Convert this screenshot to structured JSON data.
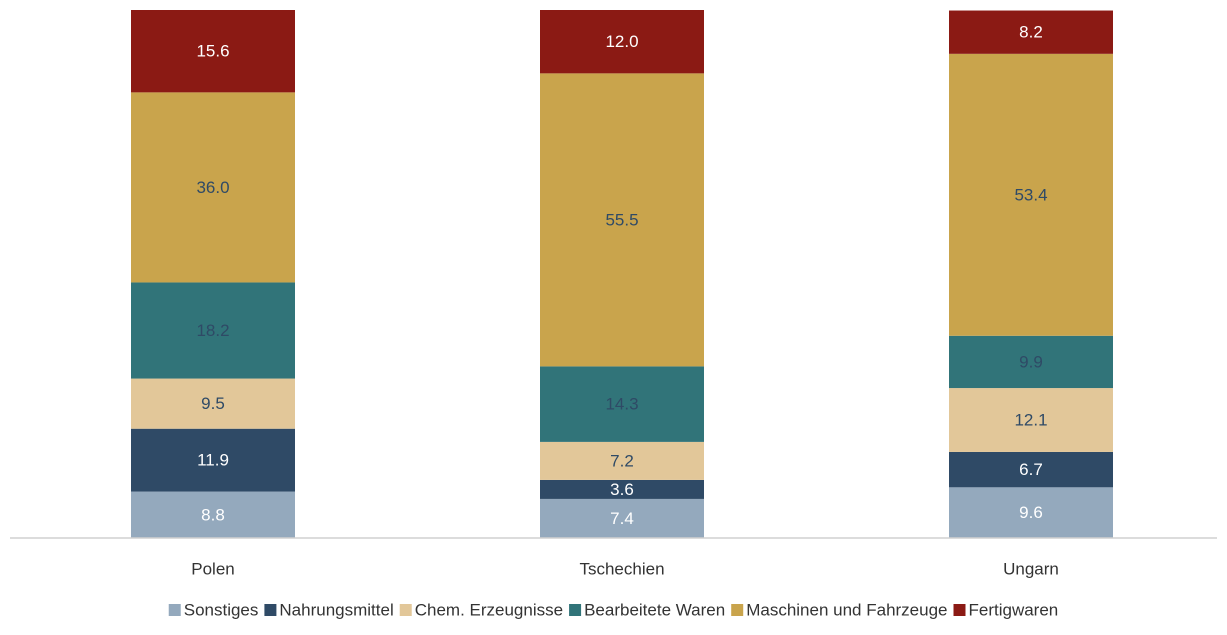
{
  "chart_data": {
    "type": "stacked_bar",
    "categories": [
      "Polen",
      "Tschechien",
      "Ungarn"
    ],
    "ylim": [
      0,
      100
    ],
    "series": [
      {
        "name": "Sonstiges",
        "color": "#94a9bd",
        "label_color": "#ffffff",
        "values": [
          8.8,
          7.4,
          9.6
        ],
        "value_labels": [
          "8.8",
          "7.4",
          "9.6"
        ]
      },
      {
        "name": "Nahrungsmittel",
        "color": "#2f4a66",
        "label_color": "#ffffff",
        "values": [
          11.9,
          3.6,
          6.7
        ],
        "value_labels": [
          "11.9",
          "3.6",
          "6.7"
        ]
      },
      {
        "name": "Chem. Erzeugnisse",
        "color": "#e2c799",
        "label_color": "#2f4a66",
        "values": [
          9.5,
          7.2,
          12.1
        ],
        "value_labels": [
          "9.5",
          "7.2",
          "12.1"
        ]
      },
      {
        "name": "Bearbeitete Waren",
        "color": "#317479",
        "label_color": "#2f4a66",
        "values": [
          18.2,
          14.3,
          9.9
        ],
        "value_labels": [
          "18.2",
          "14.3",
          "9.9"
        ]
      },
      {
        "name": "Maschinen und Fahrzeuge",
        "color": "#c9a44c",
        "label_color": "#2f4a66",
        "values": [
          36.0,
          55.5,
          53.4
        ],
        "value_labels": [
          "36.0",
          "55.5",
          "53.4"
        ]
      },
      {
        "name": "Fertigwaren",
        "color": "#8b1a14",
        "label_color": "#ffffff",
        "values": [
          15.6,
          12.0,
          8.2
        ],
        "value_labels": [
          "15.6",
          "12.0",
          "8.2"
        ]
      }
    ]
  }
}
